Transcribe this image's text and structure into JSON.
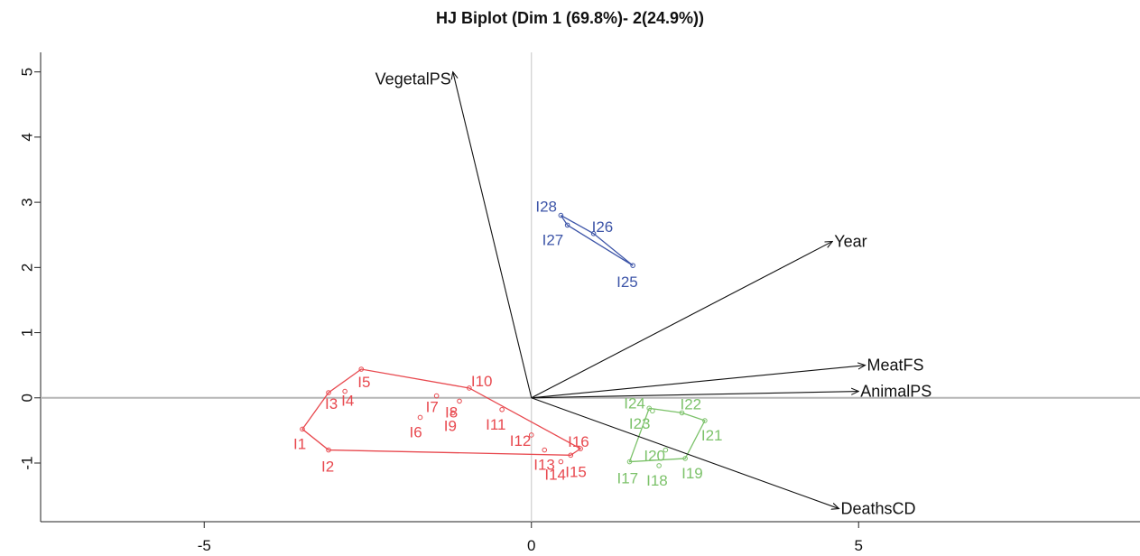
{
  "chart_data": {
    "type": "scatter",
    "title": "HJ Biplot (Dim 1 (69.8%)- 2(24.9%))",
    "xlabel": "",
    "ylabel": "",
    "xlim": [
      -7.5,
      9.3
    ],
    "ylim": [
      -1.9,
      5.3
    ],
    "x_ticks": [
      -5,
      0,
      5
    ],
    "y_ticks": [
      -1,
      0,
      1,
      2,
      3,
      4,
      5
    ],
    "reference_lines": {
      "x": 0,
      "y": 0
    },
    "vectors": [
      {
        "label": "VegetalPS",
        "x": -1.2,
        "y": 5.0
      },
      {
        "label": "Year",
        "x": 4.6,
        "y": 2.4
      },
      {
        "label": "MeatFS",
        "x": 5.1,
        "y": 0.5
      },
      {
        "label": "AnimalPS",
        "x": 5.0,
        "y": 0.1
      },
      {
        "label": "DeathsCD",
        "x": 4.7,
        "y": -1.7
      }
    ],
    "groups": [
      {
        "color": "#e8494f",
        "hull": [
          "I1",
          "I2",
          "I15",
          "I16",
          "I10",
          "I5",
          "I3"
        ],
        "points": [
          {
            "label": "I1",
            "x": -3.5,
            "y": -0.48
          },
          {
            "label": "I2",
            "x": -3.1,
            "y": -0.8
          },
          {
            "label": "I3",
            "x": -3.1,
            "y": 0.08
          },
          {
            "label": "I4",
            "x": -2.85,
            "y": 0.1
          },
          {
            "label": "I5",
            "x": -2.6,
            "y": 0.44
          },
          {
            "label": "I6",
            "x": -1.7,
            "y": -0.3
          },
          {
            "label": "I7",
            "x": -1.45,
            "y": 0.03
          },
          {
            "label": "I8",
            "x": -1.1,
            "y": -0.05
          },
          {
            "label": "I9",
            "x": -1.2,
            "y": -0.23
          },
          {
            "label": "I10",
            "x": -0.95,
            "y": 0.15
          },
          {
            "label": "I11",
            "x": -0.45,
            "y": -0.18
          },
          {
            "label": "I12",
            "x": 0.0,
            "y": -0.57
          },
          {
            "label": "I13",
            "x": 0.2,
            "y": -0.8
          },
          {
            "label": "I14",
            "x": 0.45,
            "y": -0.98
          },
          {
            "label": "I15",
            "x": 0.6,
            "y": -0.88
          },
          {
            "label": "I16",
            "x": 0.75,
            "y": -0.78
          }
        ]
      },
      {
        "color": "#7cc26a",
        "hull": [
          "I17",
          "I19",
          "I21",
          "I22",
          "I24"
        ],
        "points": [
          {
            "label": "I17",
            "x": 1.5,
            "y": -0.98
          },
          {
            "label": "I18",
            "x": 1.95,
            "y": -1.04
          },
          {
            "label": "I19",
            "x": 2.35,
            "y": -0.93
          },
          {
            "label": "I20",
            "x": 2.05,
            "y": -0.8
          },
          {
            "label": "I21",
            "x": 2.65,
            "y": -0.35
          },
          {
            "label": "I22",
            "x": 2.3,
            "y": -0.23
          },
          {
            "label": "I23",
            "x": 1.85,
            "y": -0.2
          },
          {
            "label": "I24",
            "x": 1.8,
            "y": -0.16
          }
        ]
      },
      {
        "color": "#3d55a8",
        "hull": [
          "I28",
          "I26",
          "I25",
          "I27"
        ],
        "points": [
          {
            "label": "I25",
            "x": 1.55,
            "y": 2.03
          },
          {
            "label": "I26",
            "x": 0.95,
            "y": 2.52
          },
          {
            "label": "I27",
            "x": 0.55,
            "y": 2.65
          },
          {
            "label": "I28",
            "x": 0.45,
            "y": 2.8
          }
        ]
      }
    ]
  }
}
